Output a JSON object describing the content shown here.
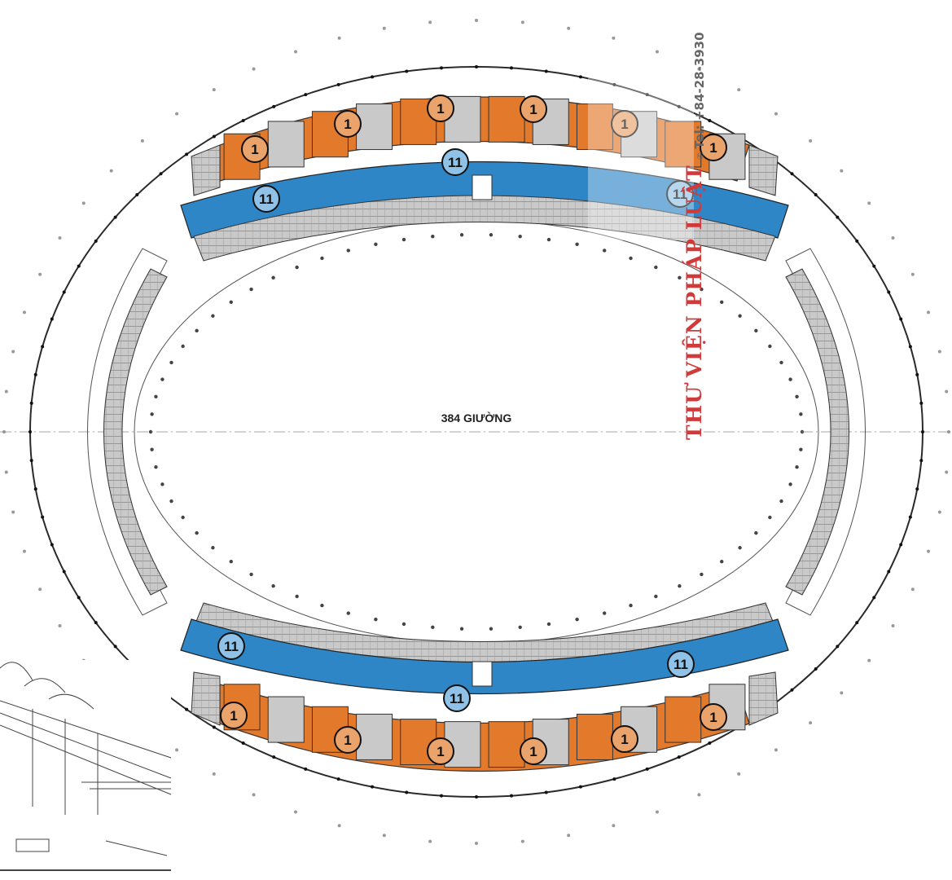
{
  "center_label": "384 GIƯỜNG",
  "watermark": {
    "text": "THƯ VIỆN PHÁP LUẬT",
    "phone": "Tel: +84-28-3930",
    "phone_icon": "phone-icon"
  },
  "ward_markers": {
    "inpatient": "1",
    "corridor": "11"
  },
  "colors": {
    "inpatient": "#e2792b",
    "corridor": "#2f86c6",
    "service": "#bdbdbd",
    "watermark": "#d03a3a"
  }
}
